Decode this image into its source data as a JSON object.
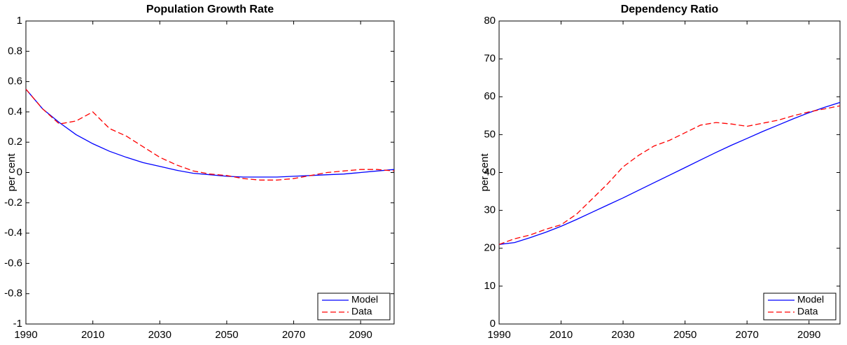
{
  "chart_data": [
    {
      "type": "line",
      "title": "Population Growth Rate",
      "y_label": "per cent",
      "x": [
        1990,
        1995,
        2000,
        2005,
        2010,
        2015,
        2020,
        2025,
        2030,
        2035,
        2040,
        2045,
        2050,
        2055,
        2060,
        2065,
        2070,
        2075,
        2080,
        2085,
        2090,
        2095,
        2100
      ],
      "series": [
        {
          "name": "Model",
          "color": "#0000ff",
          "dash": "solid",
          "values": [
            0.55,
            0.42,
            0.33,
            0.25,
            0.19,
            0.14,
            0.1,
            0.065,
            0.04,
            0.015,
            -0.005,
            -0.015,
            -0.025,
            -0.03,
            -0.03,
            -0.03,
            -0.025,
            -0.02,
            -0.015,
            -0.01,
            0,
            0.01,
            0.02
          ]
        },
        {
          "name": "Data",
          "color": "#ff0000",
          "dash": "dashed",
          "values": [
            0.55,
            0.42,
            0.32,
            0.34,
            0.4,
            0.29,
            0.24,
            0.17,
            0.1,
            0.05,
            0.01,
            -0.01,
            -0.02,
            -0.04,
            -0.05,
            -0.05,
            -0.04,
            -0.02,
            0,
            0.01,
            0.02,
            0.02,
            0.01
          ]
        }
      ],
      "xlim": [
        1990,
        2100
      ],
      "xticks": [
        1990,
        2010,
        2030,
        2050,
        2070,
        2090
      ],
      "ylim": [
        -1,
        1
      ],
      "yticks": [
        -1,
        -0.8,
        -0.6,
        -0.4,
        -0.2,
        0,
        0.2,
        0.4,
        0.6,
        0.8,
        1
      ],
      "legend": "lower right"
    },
    {
      "type": "line",
      "title": "Dependency Ratio",
      "y_label": "per cent",
      "x": [
        1990,
        1995,
        2000,
        2005,
        2010,
        2015,
        2020,
        2025,
        2030,
        2035,
        2040,
        2045,
        2050,
        2055,
        2060,
        2065,
        2070,
        2075,
        2080,
        2085,
        2090,
        2095,
        2100
      ],
      "series": [
        {
          "name": "Model",
          "color": "#0000ff",
          "dash": "solid",
          "values": [
            21,
            21.5,
            22.8,
            24.2,
            25.8,
            27.6,
            29.5,
            31.4,
            33.3,
            35.3,
            37.3,
            39.3,
            41.3,
            43.3,
            45.3,
            47.2,
            49,
            50.8,
            52.5,
            54.2,
            55.8,
            57.2,
            58.5
          ]
        },
        {
          "name": "Data",
          "color": "#ff0000",
          "dash": "dashed",
          "values": [
            21,
            22.5,
            23.5,
            25,
            26.2,
            29,
            33,
            37,
            41.5,
            44.5,
            47,
            48.5,
            50.5,
            52.5,
            53.2,
            52.8,
            52.2,
            53,
            53.8,
            55,
            56,
            56.8,
            57.6
          ]
        }
      ],
      "xlim": [
        1990,
        2100
      ],
      "xticks": [
        1990,
        2010,
        2030,
        2050,
        2070,
        2090
      ],
      "ylim": [
        0,
        80
      ],
      "yticks": [
        0,
        10,
        20,
        30,
        40,
        50,
        60,
        70,
        80
      ],
      "legend": "lower right"
    }
  ]
}
